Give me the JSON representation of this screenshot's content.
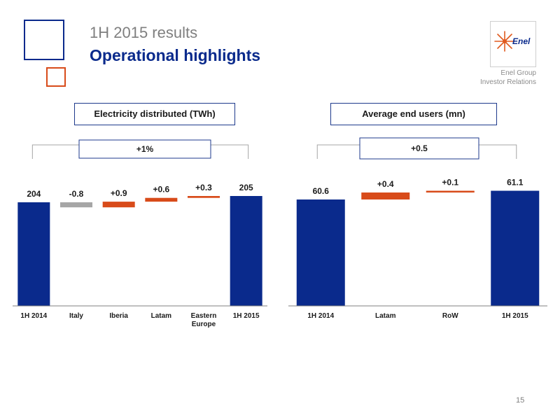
{
  "header": {
    "subtitle": "1H 2015 results",
    "title": "Operational highlights",
    "logo_text": "Enel",
    "corp_line1": "Enel Group",
    "corp_line2": "Investor Relations"
  },
  "page_number": "15",
  "colors": {
    "blue": "#0a2a8c",
    "orange": "#d84b1a",
    "gray": "#a6a6a6"
  },
  "chart_data": [
    {
      "type": "bar",
      "subtype": "waterfall",
      "title": "Electricity distributed (TWh)",
      "change_label": "+1%",
      "categories": [
        "1H 2014",
        "Italy",
        "Iberia",
        "Latam",
        "Eastern Europe",
        "1H 2015"
      ],
      "values": [
        204,
        -0.8,
        0.9,
        0.6,
        0.3,
        205
      ],
      "value_labels": [
        "204",
        "-0.8",
        "+0.9",
        "+0.6",
        "+0.3",
        "205"
      ],
      "kinds": [
        "total",
        "delta",
        "delta",
        "delta",
        "delta",
        "total"
      ],
      "bar_colors": [
        "#0a2a8c",
        "#a6a6a6",
        "#d84b1a",
        "#d84b1a",
        "#d84b1a",
        "#0a2a8c"
      ]
    },
    {
      "type": "bar",
      "subtype": "waterfall",
      "title": "Average end users (mn)",
      "change_label": "+0.5",
      "categories": [
        "1H 2014",
        "Latam",
        "RoW",
        "1H 2015"
      ],
      "values": [
        60.6,
        0.4,
        0.1,
        61.1
      ],
      "value_labels": [
        "60.6",
        "+0.4",
        "+0.1",
        "61.1"
      ],
      "kinds": [
        "total",
        "delta",
        "delta",
        "total"
      ],
      "bar_colors": [
        "#0a2a8c",
        "#d84b1a",
        "#d84b1a",
        "#0a2a8c"
      ]
    }
  ]
}
